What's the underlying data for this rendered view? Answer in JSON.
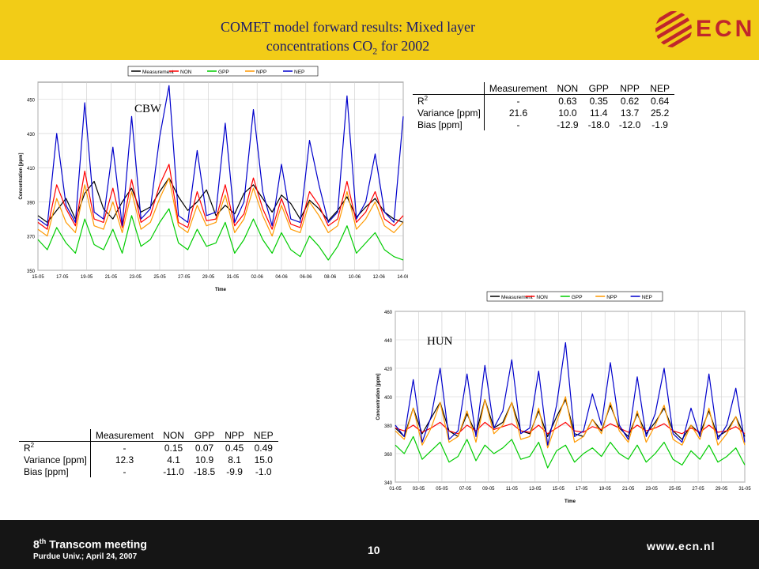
{
  "slide": {
    "title_line1": "COMET model forward results: Mixed layer",
    "title_line2_pre": "concentrations CO",
    "title_line2_sub": "2",
    "title_line2_post": " for 2002",
    "logo_text": "ECN",
    "logo_icon": "ecn-striped-circle-logo",
    "footer": {
      "meeting_num": "8",
      "meeting_sup": "th",
      "meeting_rest": " Transcom meeting",
      "venue": "Purdue Univ.; April 24, 2007",
      "page": "10",
      "url": "www.ecn.nl"
    },
    "colors": {
      "header": "#f2cc17",
      "footer": "#151515",
      "title": "#1a1a6a",
      "logo": "#c0262c"
    }
  },
  "chart_data": [
    {
      "type": "line",
      "site_label": "CBW",
      "xlabel": "Time",
      "ylabel": "Concentration [ppm]",
      "ylim": [
        350,
        460
      ],
      "yticks": [
        350,
        370,
        390,
        410,
        430,
        450
      ],
      "xticks": [
        "15-05",
        "17-05",
        "19-05",
        "21-05",
        "23-05",
        "25-05",
        "27-05",
        "29-05",
        "31-05",
        "02-06",
        "04-06",
        "06-06",
        "08-06",
        "10-06",
        "12-06",
        "14-06"
      ],
      "grid": true,
      "legend": "top",
      "series": [
        {
          "name": "Measurement",
          "color": "#000000",
          "values": [
            382,
            378,
            385,
            392,
            380,
            395,
            402,
            386,
            380,
            390,
            398,
            384,
            387,
            396,
            404,
            393,
            385,
            390,
            397,
            382,
            388,
            383,
            395,
            400,
            392,
            384,
            394,
            389,
            380,
            391,
            386,
            379,
            385,
            393,
            381,
            387,
            392,
            384,
            380,
            378
          ]
        },
        {
          "name": "NON",
          "color": "#ff0000",
          "values": [
            378,
            374,
            400,
            386,
            376,
            408,
            380,
            378,
            398,
            375,
            403,
            378,
            382,
            400,
            412,
            378,
            375,
            396,
            379,
            380,
            400,
            376,
            383,
            404,
            386,
            374,
            392,
            377,
            375,
            396,
            388,
            376,
            380,
            402,
            378,
            384,
            396,
            380,
            376,
            382
          ]
        },
        {
          "name": "GPP",
          "color": "#00cc00",
          "values": [
            368,
            362,
            375,
            366,
            360,
            380,
            365,
            362,
            374,
            360,
            382,
            364,
            368,
            378,
            386,
            366,
            362,
            374,
            364,
            366,
            378,
            360,
            368,
            380,
            368,
            360,
            372,
            362,
            358,
            370,
            364,
            356,
            364,
            376,
            360,
            366,
            372,
            362,
            358,
            356
          ]
        },
        {
          "name": "NPP",
          "color": "#ff9900",
          "values": [
            374,
            370,
            392,
            378,
            372,
            400,
            376,
            374,
            390,
            372,
            396,
            374,
            378,
            392,
            404,
            376,
            372,
            388,
            376,
            378,
            394,
            372,
            380,
            398,
            382,
            370,
            388,
            374,
            372,
            390,
            382,
            372,
            376,
            396,
            374,
            380,
            390,
            376,
            372,
            378
          ]
        },
        {
          "name": "NEP",
          "color": "#0000cc",
          "values": [
            380,
            376,
            430,
            388,
            378,
            448,
            384,
            380,
            422,
            376,
            440,
            380,
            386,
            428,
            458,
            382,
            378,
            420,
            382,
            384,
            436,
            378,
            390,
            444,
            396,
            376,
            412,
            380,
            378,
            426,
            400,
            378,
            384,
            452,
            380,
            390,
            418,
            384,
            378,
            440
          ]
        }
      ]
    },
    {
      "type": "line",
      "site_label": "HUN",
      "xlabel": "Time",
      "ylabel": "Concentration [ppm]",
      "ylim": [
        340,
        460
      ],
      "yticks": [
        340,
        360,
        380,
        400,
        420,
        440,
        460
      ],
      "xticks": [
        "01-05",
        "03-05",
        "05-05",
        "07-05",
        "09-05",
        "11-05",
        "13-05",
        "15-05",
        "17-05",
        "19-05",
        "21-05",
        "23-05",
        "25-05",
        "27-05",
        "29-05",
        "31-05"
      ],
      "grid": true,
      "legend": "top",
      "series": [
        {
          "name": "Measurement",
          "color": "#000000",
          "values": [
            378,
            372,
            392,
            374,
            385,
            396,
            376,
            372,
            388,
            374,
            398,
            378,
            382,
            396,
            376,
            374,
            390,
            372,
            386,
            398,
            374,
            372,
            384,
            376,
            394,
            378,
            372,
            388,
            374,
            382,
            392,
            376,
            370,
            380,
            374,
            390,
            372,
            376,
            386,
            372
          ]
        },
        {
          "name": "NON",
          "color": "#ff0000",
          "values": [
            378,
            376,
            380,
            375,
            378,
            382,
            376,
            374,
            380,
            376,
            382,
            377,
            379,
            381,
            376,
            375,
            380,
            374,
            378,
            382,
            376,
            375,
            379,
            377,
            381,
            378,
            375,
            380,
            376,
            378,
            381,
            376,
            374,
            378,
            375,
            380,
            375,
            376,
            379,
            374
          ]
        },
        {
          "name": "GPP",
          "color": "#00cc00",
          "values": [
            366,
            360,
            372,
            356,
            362,
            368,
            354,
            358,
            370,
            355,
            366,
            360,
            364,
            370,
            356,
            358,
            368,
            350,
            362,
            366,
            354,
            360,
            364,
            358,
            368,
            360,
            356,
            366,
            354,
            360,
            368,
            356,
            352,
            362,
            356,
            366,
            354,
            358,
            364,
            352
          ]
        },
        {
          "name": "NPP",
          "color": "#ff9900",
          "values": [
            376,
            370,
            392,
            366,
            378,
            396,
            368,
            372,
            390,
            368,
            398,
            374,
            380,
            396,
            370,
            372,
            392,
            364,
            382,
            400,
            368,
            372,
            384,
            374,
            396,
            376,
            368,
            390,
            368,
            380,
            394,
            370,
            366,
            380,
            370,
            392,
            366,
            374,
            386,
            366
          ]
        },
        {
          "name": "NEP",
          "color": "#0000cc",
          "values": [
            380,
            372,
            412,
            368,
            386,
            420,
            370,
            376,
            416,
            372,
            422,
            378,
            390,
            426,
            374,
            378,
            418,
            366,
            394,
            438,
            372,
            376,
            402,
            380,
            424,
            380,
            370,
            414,
            372,
            388,
            420,
            374,
            368,
            392,
            372,
            416,
            370,
            380,
            406,
            368
          ]
        }
      ]
    }
  ],
  "tables": {
    "cbw": {
      "headers": [
        "Measurement",
        "NON",
        "GPP",
        "NPP",
        "NEP"
      ],
      "rows": [
        {
          "label": "R",
          "sup": "2",
          "values": [
            "-",
            "0.63",
            "0.35",
            "0.62",
            "0.64"
          ]
        },
        {
          "label": "Variance [ppm]",
          "sup": "",
          "values": [
            "21.6",
            "10.0",
            "11.4",
            "13.7",
            "25.2"
          ]
        },
        {
          "label": "Bias [ppm]",
          "sup": "",
          "values": [
            "-",
            "-12.9",
            "-18.0",
            "-12.0",
            "-1.9"
          ]
        }
      ]
    },
    "hun": {
      "headers": [
        "Measurement",
        "NON",
        "GPP",
        "NPP",
        "NEP"
      ],
      "rows": [
        {
          "label": "R",
          "sup": "2",
          "values": [
            "-",
            "0.15",
            "0.07",
            "0.45",
            "0.49"
          ]
        },
        {
          "label": "Variance [ppm]",
          "sup": "",
          "values": [
            "12.3",
            "4.1",
            "10.9",
            "8.1",
            "15.0"
          ]
        },
        {
          "label": "Bias [ppm]",
          "sup": "",
          "values": [
            "-",
            "-11.0",
            "-18.5",
            "-9.9",
            "-1.0"
          ]
        }
      ]
    }
  }
}
